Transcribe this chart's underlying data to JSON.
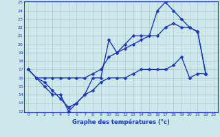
{
  "x": [
    0,
    1,
    2,
    3,
    4,
    5,
    6,
    7,
    8,
    9,
    10,
    11,
    12,
    13,
    14,
    15,
    16,
    17,
    18,
    19,
    20,
    21,
    22,
    23
  ],
  "line1": [
    17,
    16,
    15,
    14,
    14,
    12,
    13,
    14,
    16,
    16,
    20.5,
    19,
    20,
    21,
    21,
    21,
    24,
    25,
    24,
    23,
    22,
    21.5,
    16.5,
    null
  ],
  "line2": [
    17,
    16,
    16,
    16,
    16,
    16,
    16,
    16,
    16.5,
    17,
    18.5,
    19,
    19.5,
    20,
    20.5,
    21,
    21,
    22,
    22.5,
    22,
    22,
    21.5,
    16.5,
    null
  ],
  "line3": [
    17,
    16,
    15.5,
    14.5,
    13.5,
    12.5,
    13,
    14,
    14.5,
    15.5,
    16,
    16,
    16,
    16.5,
    17,
    17,
    17,
    17,
    17.5,
    18.5,
    16,
    16.5,
    16.5,
    null
  ],
  "ylim": [
    12,
    25
  ],
  "xlim": [
    -0.5,
    23.5
  ],
  "yticks": [
    12,
    13,
    14,
    15,
    16,
    17,
    18,
    19,
    20,
    21,
    22,
    23,
    24,
    25
  ],
  "xticks": [
    0,
    1,
    2,
    3,
    4,
    5,
    6,
    7,
    8,
    9,
    10,
    11,
    12,
    13,
    14,
    15,
    16,
    17,
    18,
    19,
    20,
    21,
    22,
    23
  ],
  "xlabel": "Graphe des températures (°c)",
  "line_color": "#1a35c8",
  "bg_color": "#cce8e8",
  "grid_color": "#b0c8c8",
  "markersize": 2.5,
  "linewidth": 1.0
}
